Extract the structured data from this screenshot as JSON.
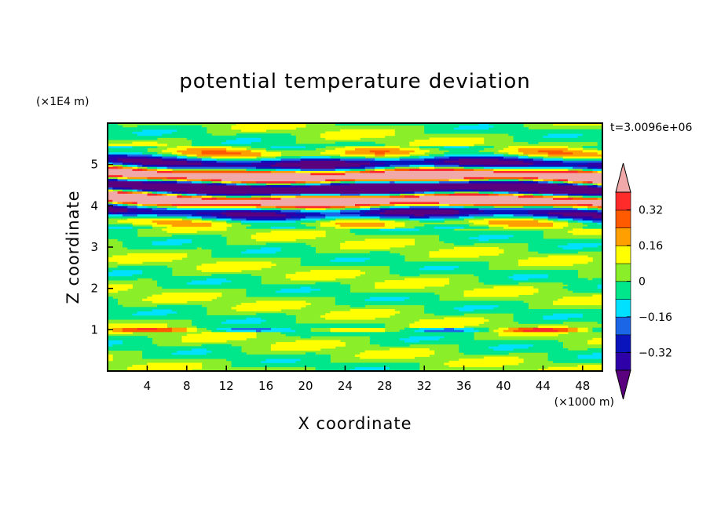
{
  "chart_data": {
    "type": "heatmap",
    "title": "potential temperature deviation",
    "xlabel": "X coordinate",
    "ylabel": "Z coordinate",
    "x_unit": "(×1000 m)",
    "y_unit": "(×1E4 m)",
    "time_label": "t=3.0096e+06",
    "xlim": [
      0,
      50
    ],
    "ylim": [
      0,
      6
    ],
    "x_ticks": [
      4,
      8,
      12,
      16,
      20,
      24,
      28,
      32,
      36,
      40,
      44,
      48
    ],
    "x_tick_labels": [
      "4",
      "8",
      "12",
      "16",
      "20",
      "24",
      "28",
      "32",
      "36",
      "40",
      "44",
      "48"
    ],
    "y_ticks": [
      1,
      2,
      3,
      4,
      5
    ],
    "y_tick_labels": [
      "1",
      "2",
      "3",
      "4",
      "5"
    ],
    "colorbar": {
      "levels": [
        -0.4,
        -0.32,
        -0.24,
        -0.16,
        -0.08,
        0,
        0.08,
        0.16,
        0.24,
        0.32,
        0.4
      ],
      "colors": [
        "#5a007e",
        "#2e00a8",
        "#0a14bd",
        "#1a66e6",
        "#00e0ff",
        "#00e68a",
        "#8aef28",
        "#ffff00",
        "#ffa000",
        "#ff5a00",
        "#ff2a2a",
        "#f0a8a8"
      ],
      "tick_values": [
        -0.32,
        -0.16,
        0,
        0.16,
        0.32
      ],
      "tick_labels": [
        "−0.32",
        "−0.16",
        "0",
        "0.16",
        "0.32"
      ],
      "extend": "both"
    },
    "field_description_bands": [
      {
        "z_range": [
          0,
          3.4
        ],
        "dominant_range": [
          -0.08,
          0.08
        ]
      },
      {
        "z_range": [
          3.5,
          5.4
        ],
        "dominant_range": [
          -0.48,
          0.48
        ]
      },
      {
        "z_range": [
          5.4,
          6
        ],
        "dominant_range": [
          -0.08,
          0.08
        ]
      }
    ]
  }
}
